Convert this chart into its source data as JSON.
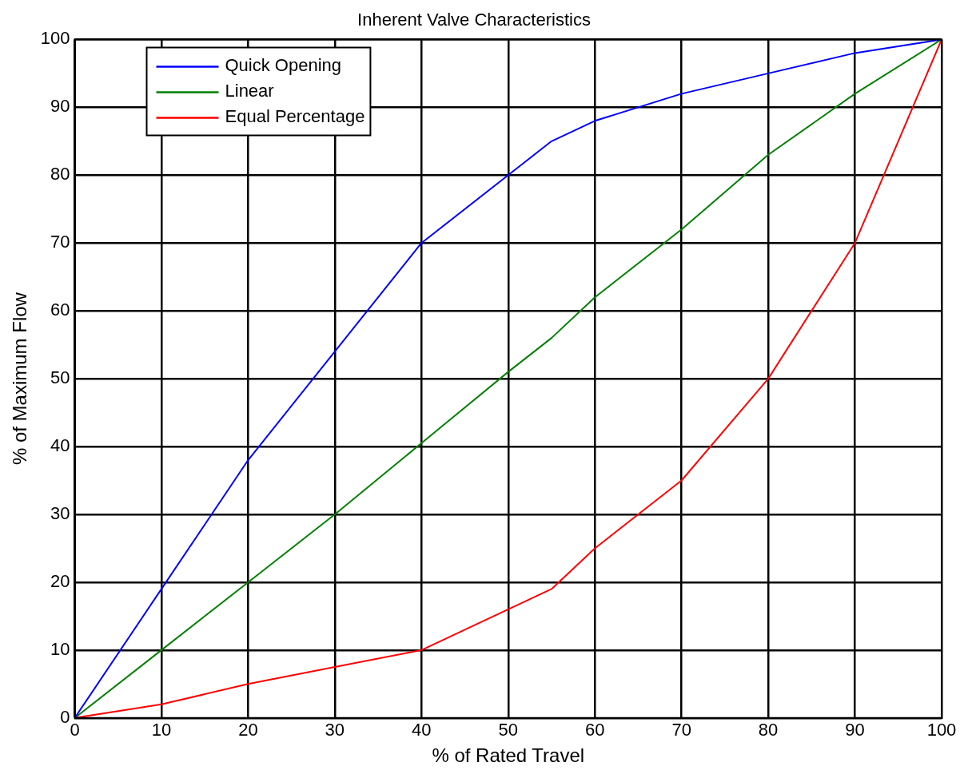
{
  "chart_data": {
    "type": "line",
    "title": "Inherent Valve Characteristics",
    "xlabel": "% of Rated Travel",
    "ylabel": "% of Maximum Flow",
    "x": [
      0,
      10,
      20,
      30,
      40,
      50,
      55,
      60,
      70,
      80,
      90,
      100
    ],
    "series": [
      {
        "name": "Quick Opening",
        "color": "#0000ff",
        "values": [
          0,
          19,
          38,
          54,
          70,
          80,
          85,
          88,
          92,
          95,
          98,
          100
        ]
      },
      {
        "name": "Linear",
        "color": "#008000",
        "values": [
          0,
          10,
          20,
          30,
          40.5,
          51,
          56,
          62,
          72,
          83,
          92,
          100
        ]
      },
      {
        "name": "Equal Percentage",
        "color": "#ff0000",
        "values": [
          0,
          2,
          5,
          7.5,
          10,
          16,
          19,
          25,
          35,
          50,
          70,
          100
        ]
      }
    ],
    "xlim": [
      0,
      100
    ],
    "xticks": [
      0,
      10,
      20,
      30,
      40,
      50,
      60,
      70,
      80,
      90,
      100
    ],
    "ylim": [
      0,
      100
    ],
    "yticks": [
      0,
      10,
      20,
      30,
      40,
      50,
      60,
      70,
      80,
      90,
      100
    ],
    "grid": true,
    "legend": "top left",
    "marker": "none",
    "line_style": "solid"
  }
}
